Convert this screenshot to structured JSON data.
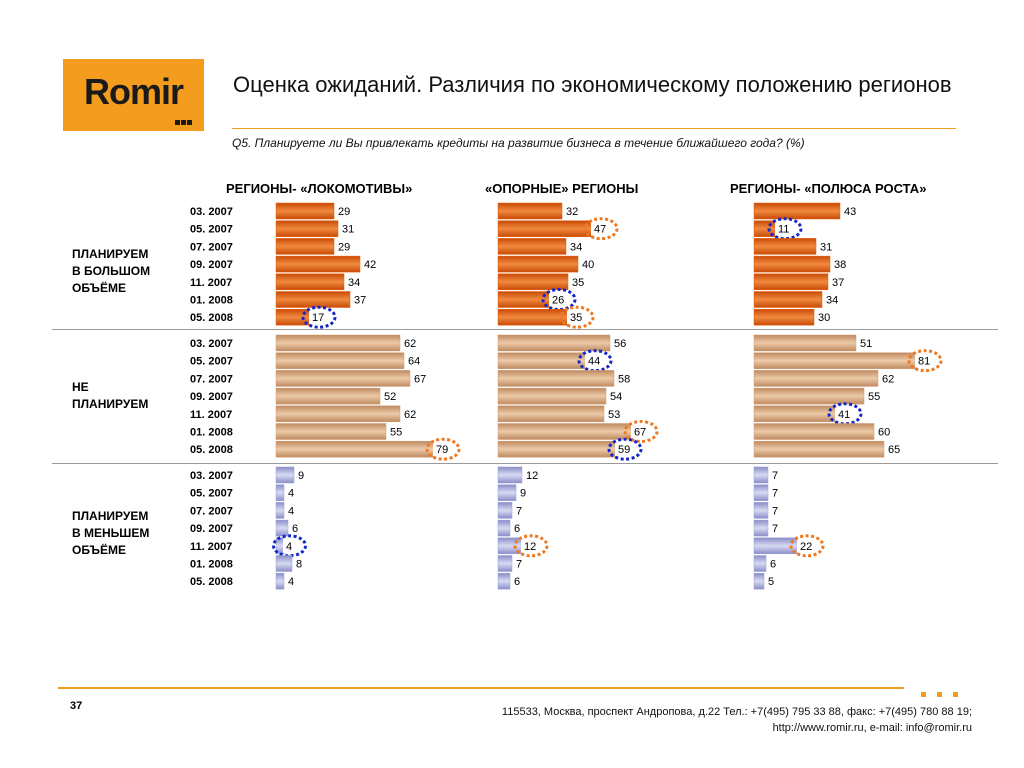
{
  "logo": {
    "text": "Romir"
  },
  "title": "Оценка ожиданий. Различия по экономическому положению регионов",
  "question": "Q5. Планируете ли Вы привлекать кредиты на развитие бизнеса в течение ближайшего года? (%)",
  "footer": {
    "page": "37",
    "address_line1": "115533, Москва, проспект Андропова, д.22   Тел.: +7(495) 795 33 88, факс: +7(495) 780 88 19;",
    "address_line2": "http://www.romir.ru, e-mail: info@romir.ru"
  },
  "colors": {
    "accent": "#f39c1d",
    "bar_more": "#e8600f",
    "bar_not": "#cf9b72",
    "bar_less": "#9b9fd4",
    "circle_up": "#f07820",
    "circle_down": "#1428c8"
  },
  "chart_data": {
    "type": "bar",
    "orientation": "horizontal",
    "categories": [
      "03. 2007",
      "05. 2007",
      "07. 2007",
      "09. 2007",
      "11. 2007",
      "01. 2008",
      "05. 2008"
    ],
    "columns": [
      {
        "title": "РЕГИОНЫ- «ЛОКОМОТИВЫ»"
      },
      {
        "title": "«ОПОРНЫЕ» РЕГИОНЫ"
      },
      {
        "title": "РЕГИОНЫ- «ПОЛЮСА РОСТА»"
      }
    ],
    "groups": [
      {
        "label_lines": [
          "ПЛАНИРУЕМ",
          "В БОЛЬШОМ",
          "ОБЪЁМЕ"
        ],
        "series": [
          {
            "values": [
              29,
              31,
              29,
              42,
              34,
              37,
              17
            ],
            "highlights": {
              "6": "down"
            }
          },
          {
            "values": [
              32,
              47,
              34,
              40,
              35,
              26,
              35
            ],
            "highlights": {
              "1": "up",
              "5": "down",
              "6": "up"
            }
          },
          {
            "values": [
              43,
              11,
              31,
              38,
              37,
              34,
              30
            ],
            "highlights": {
              "1": "down"
            }
          }
        ]
      },
      {
        "label_lines": [
          "НЕ",
          "ПЛАНИРУЕМ"
        ],
        "series": [
          {
            "values": [
              62,
              64,
              67,
              52,
              62,
              55,
              79
            ],
            "highlights": {
              "6": "up"
            }
          },
          {
            "values": [
              56,
              44,
              58,
              54,
              53,
              67,
              59
            ],
            "highlights": {
              "1": "down",
              "5": "up",
              "6": "down"
            }
          },
          {
            "values": [
              51,
              81,
              62,
              55,
              41,
              60,
              65
            ],
            "highlights": {
              "1": "up",
              "4": "down"
            }
          }
        ]
      },
      {
        "label_lines": [
          "ПЛАНИРУЕМ",
          "В МЕНЬШЕМ",
          "ОБЪЁМЕ"
        ],
        "series": [
          {
            "values": [
              9,
              4,
              4,
              6,
              4,
              8,
              4
            ],
            "highlights": {
              "4": "down"
            }
          },
          {
            "values": [
              12,
              9,
              7,
              6,
              12,
              7,
              6
            ],
            "highlights": {
              "4": "up"
            }
          },
          {
            "values": [
              7,
              7,
              7,
              7,
              22,
              6,
              5
            ],
            "highlights": {
              "4": "up"
            }
          }
        ]
      }
    ]
  }
}
